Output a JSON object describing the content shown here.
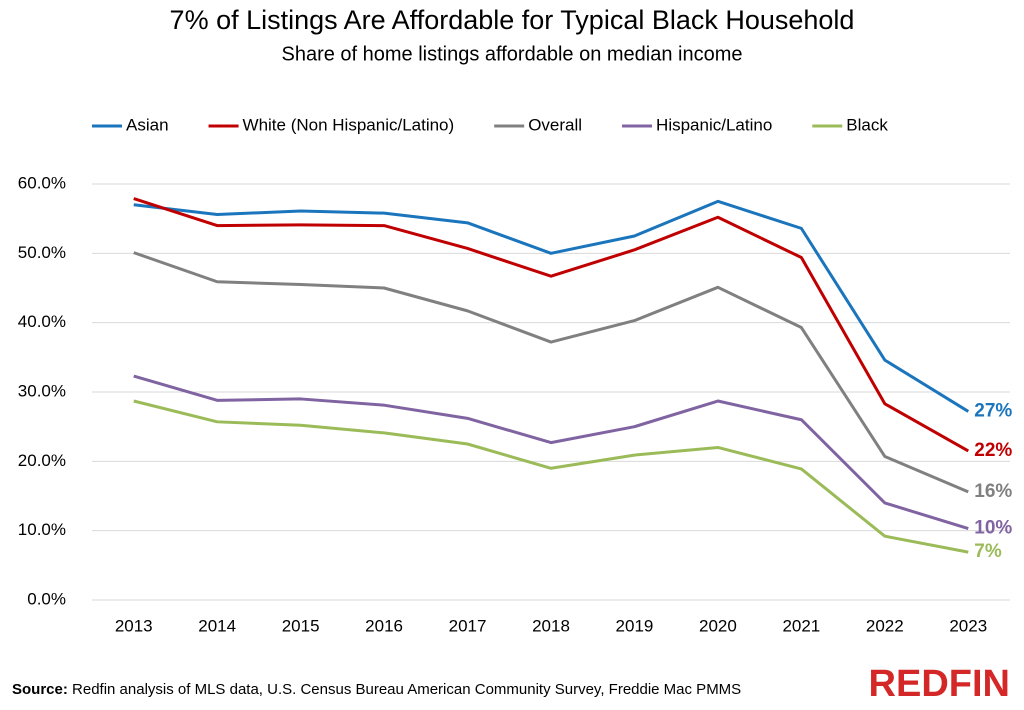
{
  "chart_data": {
    "type": "line",
    "title": "7% of Listings Are Affordable for Typical Black Household",
    "subtitle": "Share of home listings affordable on median income",
    "categories": [
      "2013",
      "2014",
      "2015",
      "2016",
      "2017",
      "2018",
      "2019",
      "2020",
      "2021",
      "2022",
      "2023"
    ],
    "series": [
      {
        "name": "Asian",
        "color": "#1a75bc",
        "values": [
          57.0,
          55.6,
          56.1,
          55.8,
          54.4,
          50.0,
          52.5,
          57.5,
          53.6,
          34.6,
          27.2
        ],
        "value_labels": [
          null,
          null,
          null,
          null,
          null,
          null,
          null,
          null,
          null,
          null,
          "27%"
        ]
      },
      {
        "name": "White (Non Hispanic/Latino)",
        "color": "#c00000",
        "values": [
          57.9,
          54.0,
          54.1,
          54.0,
          50.7,
          46.7,
          50.5,
          55.2,
          49.4,
          28.3,
          21.5
        ],
        "value_labels": [
          null,
          null,
          null,
          null,
          null,
          null,
          null,
          null,
          null,
          null,
          "22%"
        ]
      },
      {
        "name": "Overall",
        "color": "#808080",
        "values": [
          50.1,
          45.9,
          45.5,
          45.0,
          41.7,
          37.2,
          40.3,
          45.1,
          39.3,
          20.7,
          15.6
        ],
        "value_labels": [
          null,
          null,
          null,
          null,
          null,
          null,
          null,
          null,
          null,
          null,
          "16%"
        ]
      },
      {
        "name": "Hispanic/Latino",
        "color": "#8064a2",
        "values": [
          32.3,
          28.8,
          29.0,
          28.1,
          26.2,
          22.7,
          25.0,
          28.7,
          26.0,
          14.0,
          10.3
        ],
        "value_labels": [
          null,
          null,
          null,
          null,
          null,
          null,
          null,
          null,
          null,
          null,
          "10%"
        ]
      },
      {
        "name": "Black",
        "color": "#9bbb59",
        "values": [
          28.7,
          25.7,
          25.2,
          24.1,
          22.5,
          19.0,
          20.9,
          22.0,
          18.9,
          9.2,
          6.9
        ],
        "value_labels": [
          null,
          null,
          null,
          null,
          null,
          null,
          null,
          null,
          null,
          null,
          "7%"
        ]
      }
    ],
    "ylim": [
      0,
      60
    ],
    "yticks": [
      {
        "value": 0,
        "label": "0.0%"
      },
      {
        "value": 10,
        "label": "10.0%"
      },
      {
        "value": 20,
        "label": "20.0%"
      },
      {
        "value": 30,
        "label": "30.0%"
      },
      {
        "value": 40,
        "label": "40.0%"
      },
      {
        "value": 50,
        "label": "50.0%"
      },
      {
        "value": 60,
        "label": "60.0%"
      }
    ],
    "grid": true,
    "legend": "top",
    "source_label": "Source:",
    "source": "Redfin analysis of MLS data, U.S. Census Bureau American Community Survey, Freddie Mac PMMS",
    "logo": "REDFIN"
  }
}
